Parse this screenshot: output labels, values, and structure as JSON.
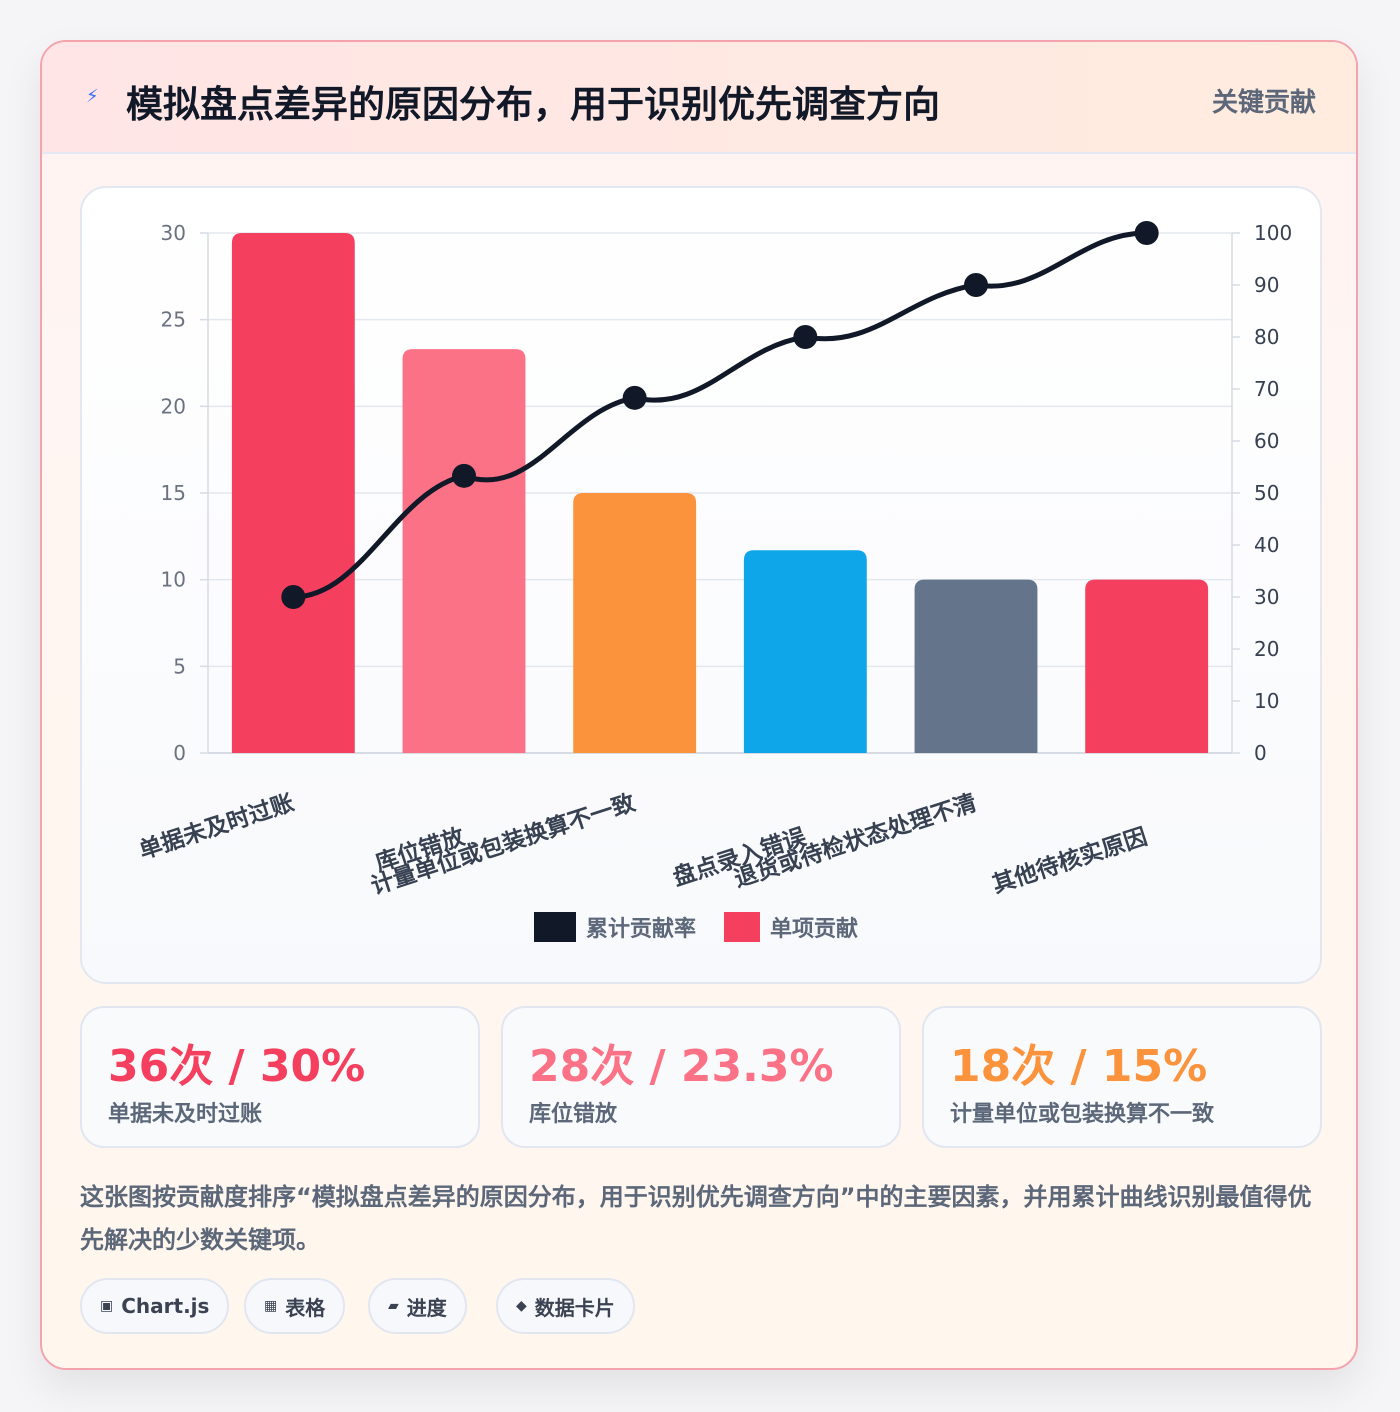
{
  "header": {
    "icon": "lightning-icon",
    "title": "模拟盘点差异的原因分布，用于识别优先调查方向",
    "badge": "关键贡献"
  },
  "chart_data": {
    "type": "bar",
    "categories": [
      "单据未及时过账",
      "库位错放",
      "计量单位或包装换算不一致",
      "盘点录入错误",
      "退货或待检状态处理不清",
      "其他待核实原因"
    ],
    "series": [
      {
        "name": "单项贡献",
        "type": "bar",
        "axis": "left",
        "values": [
          30,
          23.3,
          15,
          11.7,
          10,
          10
        ]
      },
      {
        "name": "累计贡献率",
        "type": "line",
        "axis": "right",
        "values": [
          30,
          53.3,
          68.3,
          80,
          90,
          100
        ]
      }
    ],
    "bar_colors": [
      "#f43f5e",
      "#fb7185",
      "#fb923c",
      "#0ea5e9",
      "#64748b",
      "#f43f5e"
    ],
    "line_color": "#111827",
    "ylim_left": [
      0,
      30
    ],
    "yticks_left": [
      0,
      5,
      10,
      15,
      20,
      25,
      30
    ],
    "ylim_right": [
      0,
      100
    ],
    "yticks_right": [
      0,
      10,
      20,
      30,
      40,
      50,
      60,
      70,
      80,
      90,
      100
    ],
    "legend": [
      {
        "label": "累计贡献率",
        "color": "#111827"
      },
      {
        "label": "单项贡献",
        "color": "#f43f5e"
      }
    ],
    "legend_position": "bottom",
    "grid": true
  },
  "stats": [
    {
      "value": "36次 / 30%",
      "label": "单据未及时过账",
      "color": "#f43f5e"
    },
    {
      "value": "28次 / 23.3%",
      "label": "库位错放",
      "color": "#fb7185"
    },
    {
      "value": "18次 / 15%",
      "label": "计量单位或包装换算不一致",
      "color": "#fb923c"
    }
  ],
  "description": "这张图按贡献度排序“模拟盘点差异的原因分布，用于识别优先调查方向”中的主要因素，并用累计曲线识别最值得优先解决的少数关键项。",
  "pills": [
    {
      "icon": "▣",
      "label": "Chart.js"
    },
    {
      "icon": "▦",
      "label": "表格"
    },
    {
      "icon": "▰",
      "label": "进度"
    },
    {
      "icon": "◆",
      "label": "数据卡片"
    }
  ]
}
